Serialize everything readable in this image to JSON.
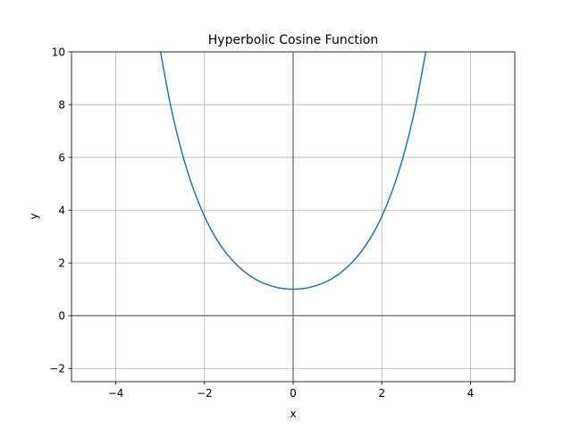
{
  "chart_data": {
    "type": "line",
    "title": "Hyperbolic Cosine Function",
    "xlabel": "x",
    "ylabel": "y",
    "xlim": [
      -5,
      5
    ],
    "ylim": [
      -2.5,
      10
    ],
    "xticks": [
      -4,
      -2,
      0,
      2,
      4
    ],
    "xtick_labels": [
      "−4",
      "−2",
      "0",
      "2",
      "4"
    ],
    "yticks": [
      -2,
      0,
      2,
      4,
      6,
      8,
      10
    ],
    "ytick_labels": [
      "−2",
      "0",
      "2",
      "4",
      "6",
      "8",
      "10"
    ],
    "grid": true,
    "reference_lines": [
      "y = 0",
      "x = 0"
    ],
    "series": [
      {
        "function": "cosh(x)",
        "color": "#1f77b4",
        "x": [
          -3.0,
          -2.75,
          -2.5,
          -2.25,
          -2.0,
          -1.75,
          -1.5,
          -1.25,
          -1.0,
          -0.75,
          -0.5,
          -0.25,
          0.0,
          0.25,
          0.5,
          0.75,
          1.0,
          1.25,
          1.5,
          1.75,
          2.0,
          2.25,
          2.5,
          2.75,
          3.0
        ],
        "y": [
          10.07,
          7.85,
          6.13,
          4.8,
          3.76,
          2.96,
          2.35,
          1.89,
          1.54,
          1.29,
          1.13,
          1.03,
          1.0,
          1.03,
          1.13,
          1.29,
          1.54,
          1.89,
          2.35,
          2.96,
          3.76,
          4.8,
          6.13,
          7.85,
          10.07
        ]
      }
    ]
  }
}
